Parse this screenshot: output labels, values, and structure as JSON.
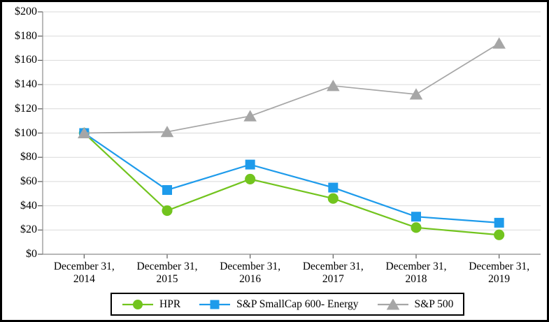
{
  "chart_data": {
    "type": "line",
    "title": "",
    "xlabel": "",
    "ylabel": "",
    "categories": [
      {
        "top": "December 31,",
        "bottom": "2014"
      },
      {
        "top": "December 31,",
        "bottom": "2015"
      },
      {
        "top": "December 31,",
        "bottom": "2016"
      },
      {
        "top": "December 31,",
        "bottom": "2017"
      },
      {
        "top": "December 31,",
        "bottom": "2018"
      },
      {
        "top": "December 31,",
        "bottom": "2019"
      }
    ],
    "series": [
      {
        "name": "HPR",
        "marker": "circle",
        "color": "#72C41E",
        "values": [
          100,
          36,
          62,
          46,
          22,
          16
        ]
      },
      {
        "name": "S&P SmallCap 600- Energy",
        "marker": "square",
        "color": "#1E9BEB",
        "values": [
          100,
          53,
          74,
          55,
          31,
          26
        ]
      },
      {
        "name": "S&P 500",
        "marker": "triangle",
        "color": "#A6A6A6",
        "values": [
          100,
          101,
          114,
          139,
          132,
          174
        ]
      }
    ],
    "y_ticks": [
      "$0",
      "$20",
      "$40",
      "$60",
      "$80",
      "$100",
      "$120",
      "$140",
      "$160",
      "$180",
      "$200"
    ],
    "ylim": [
      0,
      200
    ],
    "grid": true,
    "grid_color": "#D9D9D9",
    "axis_color": "#8C8C8C",
    "tick_color": "#595959",
    "legend_position": "bottom"
  }
}
